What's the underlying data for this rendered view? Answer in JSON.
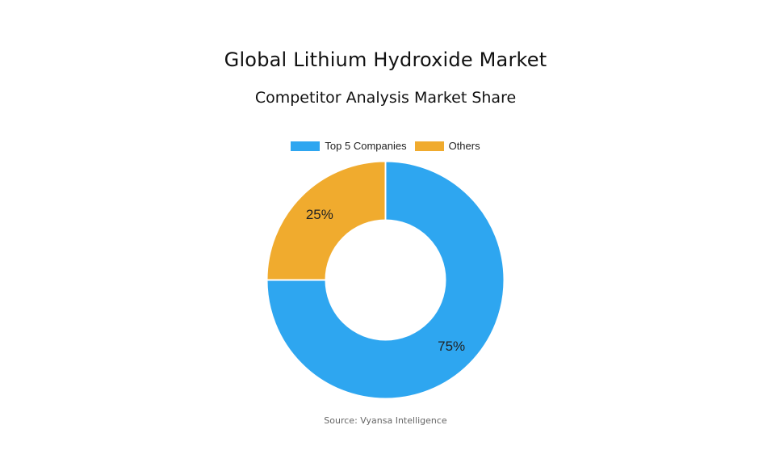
{
  "title": "Global Lithium Hydroxide Market",
  "subtitle": "Competitor Analysis Market Share",
  "source": "Source: Vyansa Intelligence",
  "chart_data": {
    "type": "pie",
    "title": "Global Lithium Hydroxide Market",
    "subtitle": "Competitor Analysis Market Share",
    "donut": true,
    "legend_position": "top",
    "categories": [
      "Top 5 Companies",
      "Others"
    ],
    "values": [
      75,
      25
    ],
    "labels": [
      "75%",
      "25%"
    ],
    "colors": [
      "#2ea6f0",
      "#f0ab2e"
    ]
  }
}
